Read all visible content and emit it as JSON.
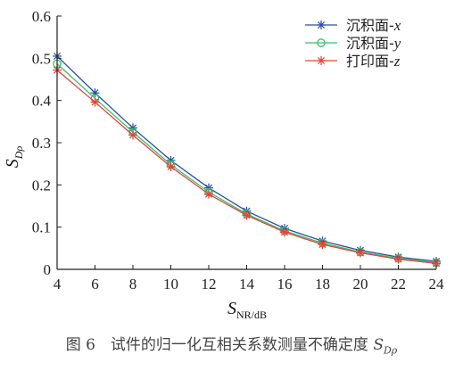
{
  "chart_data": {
    "type": "line",
    "x": [
      4,
      6,
      8,
      10,
      12,
      14,
      16,
      18,
      20,
      22,
      24
    ],
    "xlim": [
      4,
      24
    ],
    "ylim": [
      0,
      0.6
    ],
    "xticks": [
      "4",
      "6",
      "8",
      "10",
      "12",
      "14",
      "16",
      "18",
      "20",
      "22",
      "24"
    ],
    "yticks": [
      "0",
      "0.1",
      "0.2",
      "0.3",
      "0.4",
      "0.5",
      "0.6"
    ],
    "xlabel_main": "S",
    "xlabel_sub": "NR/dB",
    "ylabel_main": "S",
    "ylabel_sub": "Dρ",
    "legend_position": "top-right",
    "grid": false,
    "series": [
      {
        "name": "沉积面-x",
        "label_prefix": "沉积面-",
        "label_var": "x",
        "color": "#2b4ea2",
        "marker": "asterisk",
        "values": [
          0.505,
          0.418,
          0.335,
          0.258,
          0.193,
          0.138,
          0.097,
          0.067,
          0.045,
          0.029,
          0.019
        ]
      },
      {
        "name": "沉积面-y",
        "label_prefix": "沉积面-",
        "label_var": "y",
        "color": "#3bbf6a",
        "marker": "circle",
        "values": [
          0.487,
          0.405,
          0.325,
          0.248,
          0.183,
          0.131,
          0.091,
          0.062,
          0.041,
          0.026,
          0.016
        ]
      },
      {
        "name": "打印面-z",
        "label_prefix": "打印面-",
        "label_var": "z",
        "color": "#e0453a",
        "marker": "asterisk",
        "values": [
          0.472,
          0.396,
          0.318,
          0.243,
          0.178,
          0.128,
          0.088,
          0.059,
          0.039,
          0.024,
          0.014
        ]
      }
    ]
  },
  "caption": {
    "prefix": "图 6　试件的归一化互相关系数测量不确定度 ",
    "symbol": "S",
    "symbol_sub": "Dρ"
  }
}
